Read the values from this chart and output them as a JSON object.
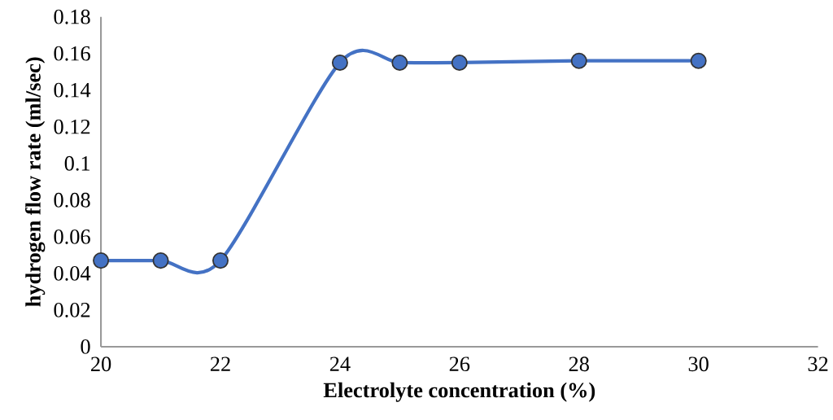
{
  "chart_data": {
    "type": "line",
    "xlabel": "Electrolyte concentration (%)",
    "ylabel": "hydrogen flow rate (ml/sec)",
    "x": [
      20,
      21,
      22,
      24,
      25,
      26,
      28,
      30
    ],
    "series": [
      {
        "color": "#4472c4",
        "values": [
          0.047,
          0.047,
          0.047,
          0.155,
          0.155,
          0.155,
          0.156,
          0.156
        ]
      }
    ],
    "xlim": [
      20,
      32
    ],
    "xticks": [
      20,
      22,
      24,
      26,
      28,
      30,
      32
    ],
    "ylim": [
      0,
      0.18
    ],
    "yticks": [
      0,
      0.02,
      0.04,
      0.06,
      0.08,
      0.1,
      0.12,
      0.14,
      0.16,
      0.18
    ],
    "marker": "circle",
    "line_style": "solid",
    "grid": false
  }
}
